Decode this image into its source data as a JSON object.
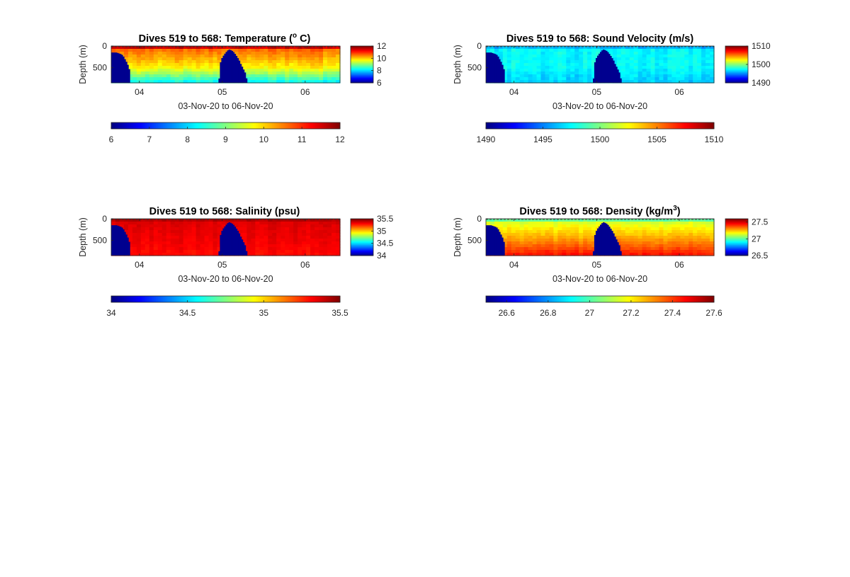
{
  "figure": {
    "background": "#ffffff",
    "colormap": "jet",
    "land_color": "#00008f"
  },
  "chart_data": [
    {
      "type": "heatmap",
      "title": "Dives 519 to 568: Temperature (",
      "title_sup": "o",
      "title_end": " C)",
      "xlabel": "03-Nov-20 to 06-Nov-20",
      "ylabel": "Depth (m)",
      "xlim": [
        3.66,
        6.42
      ],
      "x_ticks": [
        4,
        5,
        6
      ],
      "x_tick_labels": [
        "04",
        "05",
        "06"
      ],
      "ylim": [
        0,
        850
      ],
      "y_ticks": [
        0,
        500
      ],
      "y_tick_labels": [
        "0",
        "500"
      ],
      "clim": [
        6,
        12
      ],
      "colorbar_ticks": [
        12,
        10,
        8,
        6
      ],
      "colorbar_tick_labels": [
        "12",
        "10",
        "8",
        "6"
      ],
      "hcolorbar_ticks": [
        6,
        7,
        8,
        9,
        10,
        11,
        12
      ],
      "hcolorbar_tick_labels": [
        "6",
        "7",
        "8",
        "9",
        "10",
        "11",
        "12"
      ],
      "profile": {
        "surface": 12,
        "mixed_depth": 100,
        "thermo": 10.6,
        "deep": 9.8,
        "deep_depth": 500,
        "bottom": 8.2
      },
      "noise": 0.3
    },
    {
      "type": "heatmap",
      "title": "Dives 519 to 568: Sound Velocity (m/s)",
      "title_sup": "",
      "title_end": "",
      "xlabel": "03-Nov-20 to 06-Nov-20",
      "ylabel": "Depth (m)",
      "xlim": [
        3.66,
        6.42
      ],
      "x_ticks": [
        4,
        5,
        6
      ],
      "x_tick_labels": [
        "04",
        "05",
        "06"
      ],
      "ylim": [
        0,
        850
      ],
      "y_ticks": [
        0,
        500
      ],
      "y_tick_labels": [
        "0",
        "500"
      ],
      "clim": [
        1490,
        1510
      ],
      "colorbar_ticks": [
        1510,
        1500,
        1490
      ],
      "colorbar_tick_labels": [
        "1510",
        "1500",
        "1490"
      ],
      "hcolorbar_ticks": [
        1490,
        1495,
        1500,
        1505,
        1510
      ],
      "hcolorbar_tick_labels": [
        "1490",
        "1495",
        "1500",
        "1505",
        "1510"
      ],
      "profile": {
        "surface": 1495.5,
        "mixed_depth": 100,
        "thermo": 1497.5,
        "deep": 1497.5,
        "deep_depth": 500,
        "bottom": 1496.5
      },
      "noise": 1.0
    },
    {
      "type": "heatmap",
      "title": "Dives 519 to 568: Salinity (psu)",
      "title_sup": "",
      "title_end": "",
      "xlabel": "03-Nov-20 to 06-Nov-20",
      "ylabel": "Depth (m)",
      "xlim": [
        3.66,
        6.42
      ],
      "x_ticks": [
        4,
        5,
        6
      ],
      "x_tick_labels": [
        "04",
        "05",
        "06"
      ],
      "ylim": [
        0,
        850
      ],
      "y_ticks": [
        0,
        500
      ],
      "y_tick_labels": [
        "0",
        "500"
      ],
      "clim": [
        34,
        35.5
      ],
      "colorbar_ticks": [
        35.5,
        35,
        34.5,
        34
      ],
      "colorbar_tick_labels": [
        "35.5",
        "35",
        "34.5",
        "34"
      ],
      "hcolorbar_ticks": [
        34,
        34.5,
        35,
        35.5
      ],
      "hcolorbar_tick_labels": [
        "34",
        "34.5",
        "35",
        "35.5"
      ],
      "profile": {
        "surface": 35.45,
        "mixed_depth": 100,
        "thermo": 35.36,
        "deep": 35.33,
        "deep_depth": 500,
        "bottom": 35.3
      },
      "noise": 0.04
    },
    {
      "type": "heatmap",
      "title": "Dives 519 to 568: Density (kg/m",
      "title_sup": "3",
      "title_end": ")",
      "xlabel": "03-Nov-20 to 06-Nov-20",
      "ylabel": "Depth (m)",
      "xlim": [
        3.66,
        6.42
      ],
      "x_ticks": [
        4,
        5,
        6
      ],
      "x_tick_labels": [
        "04",
        "05",
        "06"
      ],
      "ylim": [
        0,
        850
      ],
      "y_ticks": [
        0,
        500
      ],
      "y_tick_labels": [
        "0",
        "500"
      ],
      "clim": [
        26.5,
        27.6
      ],
      "colorbar_ticks": [
        27.5,
        27,
        26.5
      ],
      "colorbar_tick_labels": [
        "27.5",
        "27",
        "26.5"
      ],
      "hcolorbar_ticks": [
        26.6,
        26.8,
        27,
        27.2,
        27.4,
        27.6
      ],
      "hcolorbar_tick_labels": [
        "26.6",
        "26.8",
        "27",
        "27.2",
        "27.4",
        "27.6"
      ],
      "profile": {
        "surface": 26.95,
        "mixed_depth": 100,
        "thermo": 27.15,
        "deep": 27.3,
        "deep_depth": 500,
        "bottom": 27.45
      },
      "noise": 0.04
    }
  ],
  "bathymetry": {
    "note_units": "x in days (Nov), depth in m",
    "land_profile": [
      [
        3.66,
        150
      ],
      [
        3.72,
        150
      ],
      [
        3.75,
        170
      ],
      [
        3.78,
        190
      ],
      [
        3.8,
        220
      ],
      [
        3.82,
        290
      ],
      [
        3.84,
        360
      ],
      [
        3.86,
        440
      ],
      [
        3.88,
        560
      ],
      [
        3.89,
        850
      ],
      [
        4.96,
        850
      ],
      [
        4.97,
        430
      ],
      [
        5.0,
        260
      ],
      [
        5.03,
        180
      ],
      [
        5.06,
        110
      ],
      [
        5.08,
        80
      ],
      [
        5.11,
        100
      ],
      [
        5.14,
        150
      ],
      [
        5.17,
        230
      ],
      [
        5.2,
        320
      ],
      [
        5.22,
        410
      ],
      [
        5.25,
        520
      ],
      [
        5.28,
        640
      ],
      [
        5.3,
        850
      ],
      [
        6.42,
        850
      ]
    ]
  }
}
